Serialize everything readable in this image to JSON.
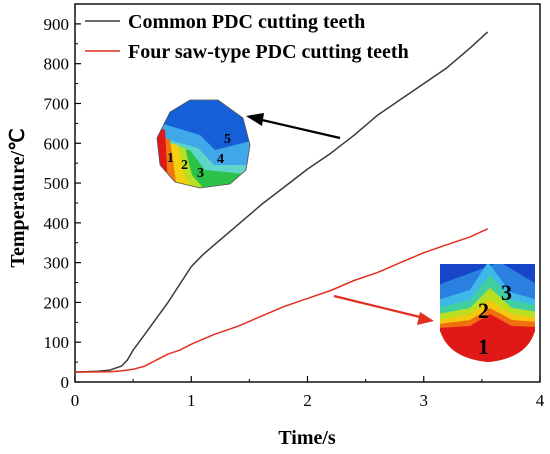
{
  "chart_data": {
    "type": "line",
    "title": "",
    "xlabel": "Time/s",
    "ylabel": "Temperature/℃",
    "xlim": [
      0,
      4
    ],
    "ylim": [
      0,
      950
    ],
    "xticks": [
      0,
      1,
      2,
      3,
      4
    ],
    "yticks": [
      0,
      100,
      200,
      300,
      400,
      500,
      600,
      700,
      800,
      900
    ],
    "grid": false,
    "legend_position": "top-left",
    "series": [
      {
        "name": "Common PDC cutting teeth",
        "color": "#3a3a3a",
        "x": [
          0,
          0.2,
          0.3,
          0.4,
          0.45,
          0.5,
          0.6,
          0.7,
          0.8,
          0.9,
          1.0,
          1.1,
          1.2,
          1.3,
          1.4,
          1.5,
          1.6,
          1.8,
          2.0,
          2.2,
          2.4,
          2.6,
          2.8,
          3.0,
          3.2,
          3.4,
          3.55
        ],
        "y": [
          25,
          27,
          30,
          40,
          55,
          80,
          120,
          160,
          200,
          245,
          290,
          320,
          345,
          370,
          395,
          420,
          445,
          490,
          535,
          575,
          620,
          670,
          710,
          750,
          790,
          840,
          880
        ]
      },
      {
        "name": "Four saw-type PDC cutting teeth",
        "color": "#e03020",
        "x": [
          0,
          0.3,
          0.4,
          0.5,
          0.6,
          0.7,
          0.8,
          0.9,
          1.0,
          1.2,
          1.4,
          1.6,
          1.8,
          2.0,
          2.2,
          2.4,
          2.6,
          2.8,
          3.0,
          3.2,
          3.4,
          3.55
        ],
        "y": [
          25,
          26,
          28,
          32,
          40,
          55,
          70,
          80,
          95,
          120,
          140,
          165,
          190,
          210,
          230,
          255,
          275,
          300,
          325,
          345,
          365,
          385
        ]
      }
    ],
    "annotations": [
      {
        "type": "inset",
        "points_to": "Common PDC cutting teeth",
        "labels": [
          "1",
          "2",
          "3",
          "4",
          "5"
        ]
      },
      {
        "type": "inset",
        "points_to": "Four saw-type PDC cutting teeth",
        "labels": [
          "1",
          "2",
          "3"
        ]
      }
    ]
  }
}
